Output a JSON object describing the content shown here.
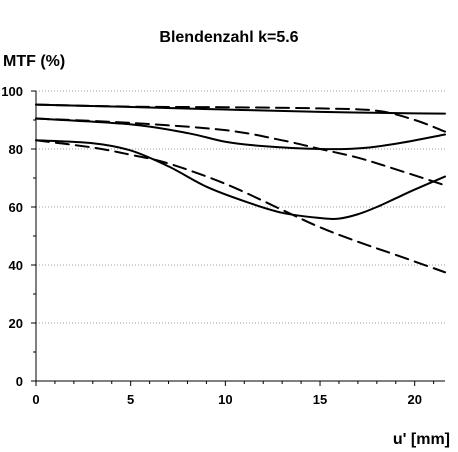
{
  "chart_data": {
    "type": "line",
    "title": "Blendenzahl k=5.6",
    "xlabel": "u' [mm]",
    "ylabel": "MTF (%)",
    "xlim": [
      0,
      21.6
    ],
    "ylim": [
      0,
      100
    ],
    "xticks": [
      0,
      5,
      10,
      15,
      20
    ],
    "yticks": [
      0,
      20,
      40,
      60,
      80,
      100
    ],
    "grid": true,
    "line_color": "#000000",
    "series": [
      {
        "style": "solid",
        "points": [
          [
            0,
            95.3
          ],
          [
            5,
            94.5
          ],
          [
            10,
            93.6
          ],
          [
            15,
            92.8
          ],
          [
            20,
            92.3
          ],
          [
            21.6,
            92.2
          ]
        ]
      },
      {
        "style": "dashed",
        "points": [
          [
            0,
            95.3
          ],
          [
            5,
            94.6
          ],
          [
            10,
            94.4
          ],
          [
            15,
            94.0
          ],
          [
            18,
            93.2
          ],
          [
            20,
            90.0
          ],
          [
            21.6,
            86.0
          ]
        ]
      },
      {
        "style": "solid",
        "points": [
          [
            0,
            90.5
          ],
          [
            5,
            88.5
          ],
          [
            8,
            85.5
          ],
          [
            10,
            82.5
          ],
          [
            12,
            81.0
          ],
          [
            15,
            80.0
          ],
          [
            17,
            80.2
          ],
          [
            19,
            81.8
          ],
          [
            21.6,
            85.0
          ]
        ]
      },
      {
        "style": "dashed",
        "points": [
          [
            0,
            90.5
          ],
          [
            5,
            89.0
          ],
          [
            10,
            86.5
          ],
          [
            13,
            83.0
          ],
          [
            15,
            80.0
          ],
          [
            17,
            77.0
          ],
          [
            19,
            73.0
          ],
          [
            21.6,
            67.5
          ]
        ]
      },
      {
        "style": "solid",
        "points": [
          [
            0,
            83.0
          ],
          [
            3,
            82.0
          ],
          [
            5,
            79.5
          ],
          [
            7,
            74.0
          ],
          [
            9,
            67.0
          ],
          [
            11,
            62.0
          ],
          [
            13,
            58.0
          ],
          [
            15,
            56.2
          ],
          [
            16,
            56.0
          ],
          [
            17,
            57.5
          ],
          [
            18,
            60.0
          ],
          [
            19,
            63.0
          ],
          [
            20,
            66.0
          ],
          [
            21.6,
            70.5
          ]
        ]
      },
      {
        "style": "dashed",
        "points": [
          [
            0,
            83.0
          ],
          [
            3,
            80.5
          ],
          [
            5,
            78.0
          ],
          [
            7,
            75.0
          ],
          [
            10,
            68.0
          ],
          [
            13,
            59.0
          ],
          [
            15,
            53.0
          ],
          [
            17,
            48.0
          ],
          [
            19,
            43.5
          ],
          [
            21.6,
            37.5
          ]
        ]
      }
    ]
  }
}
